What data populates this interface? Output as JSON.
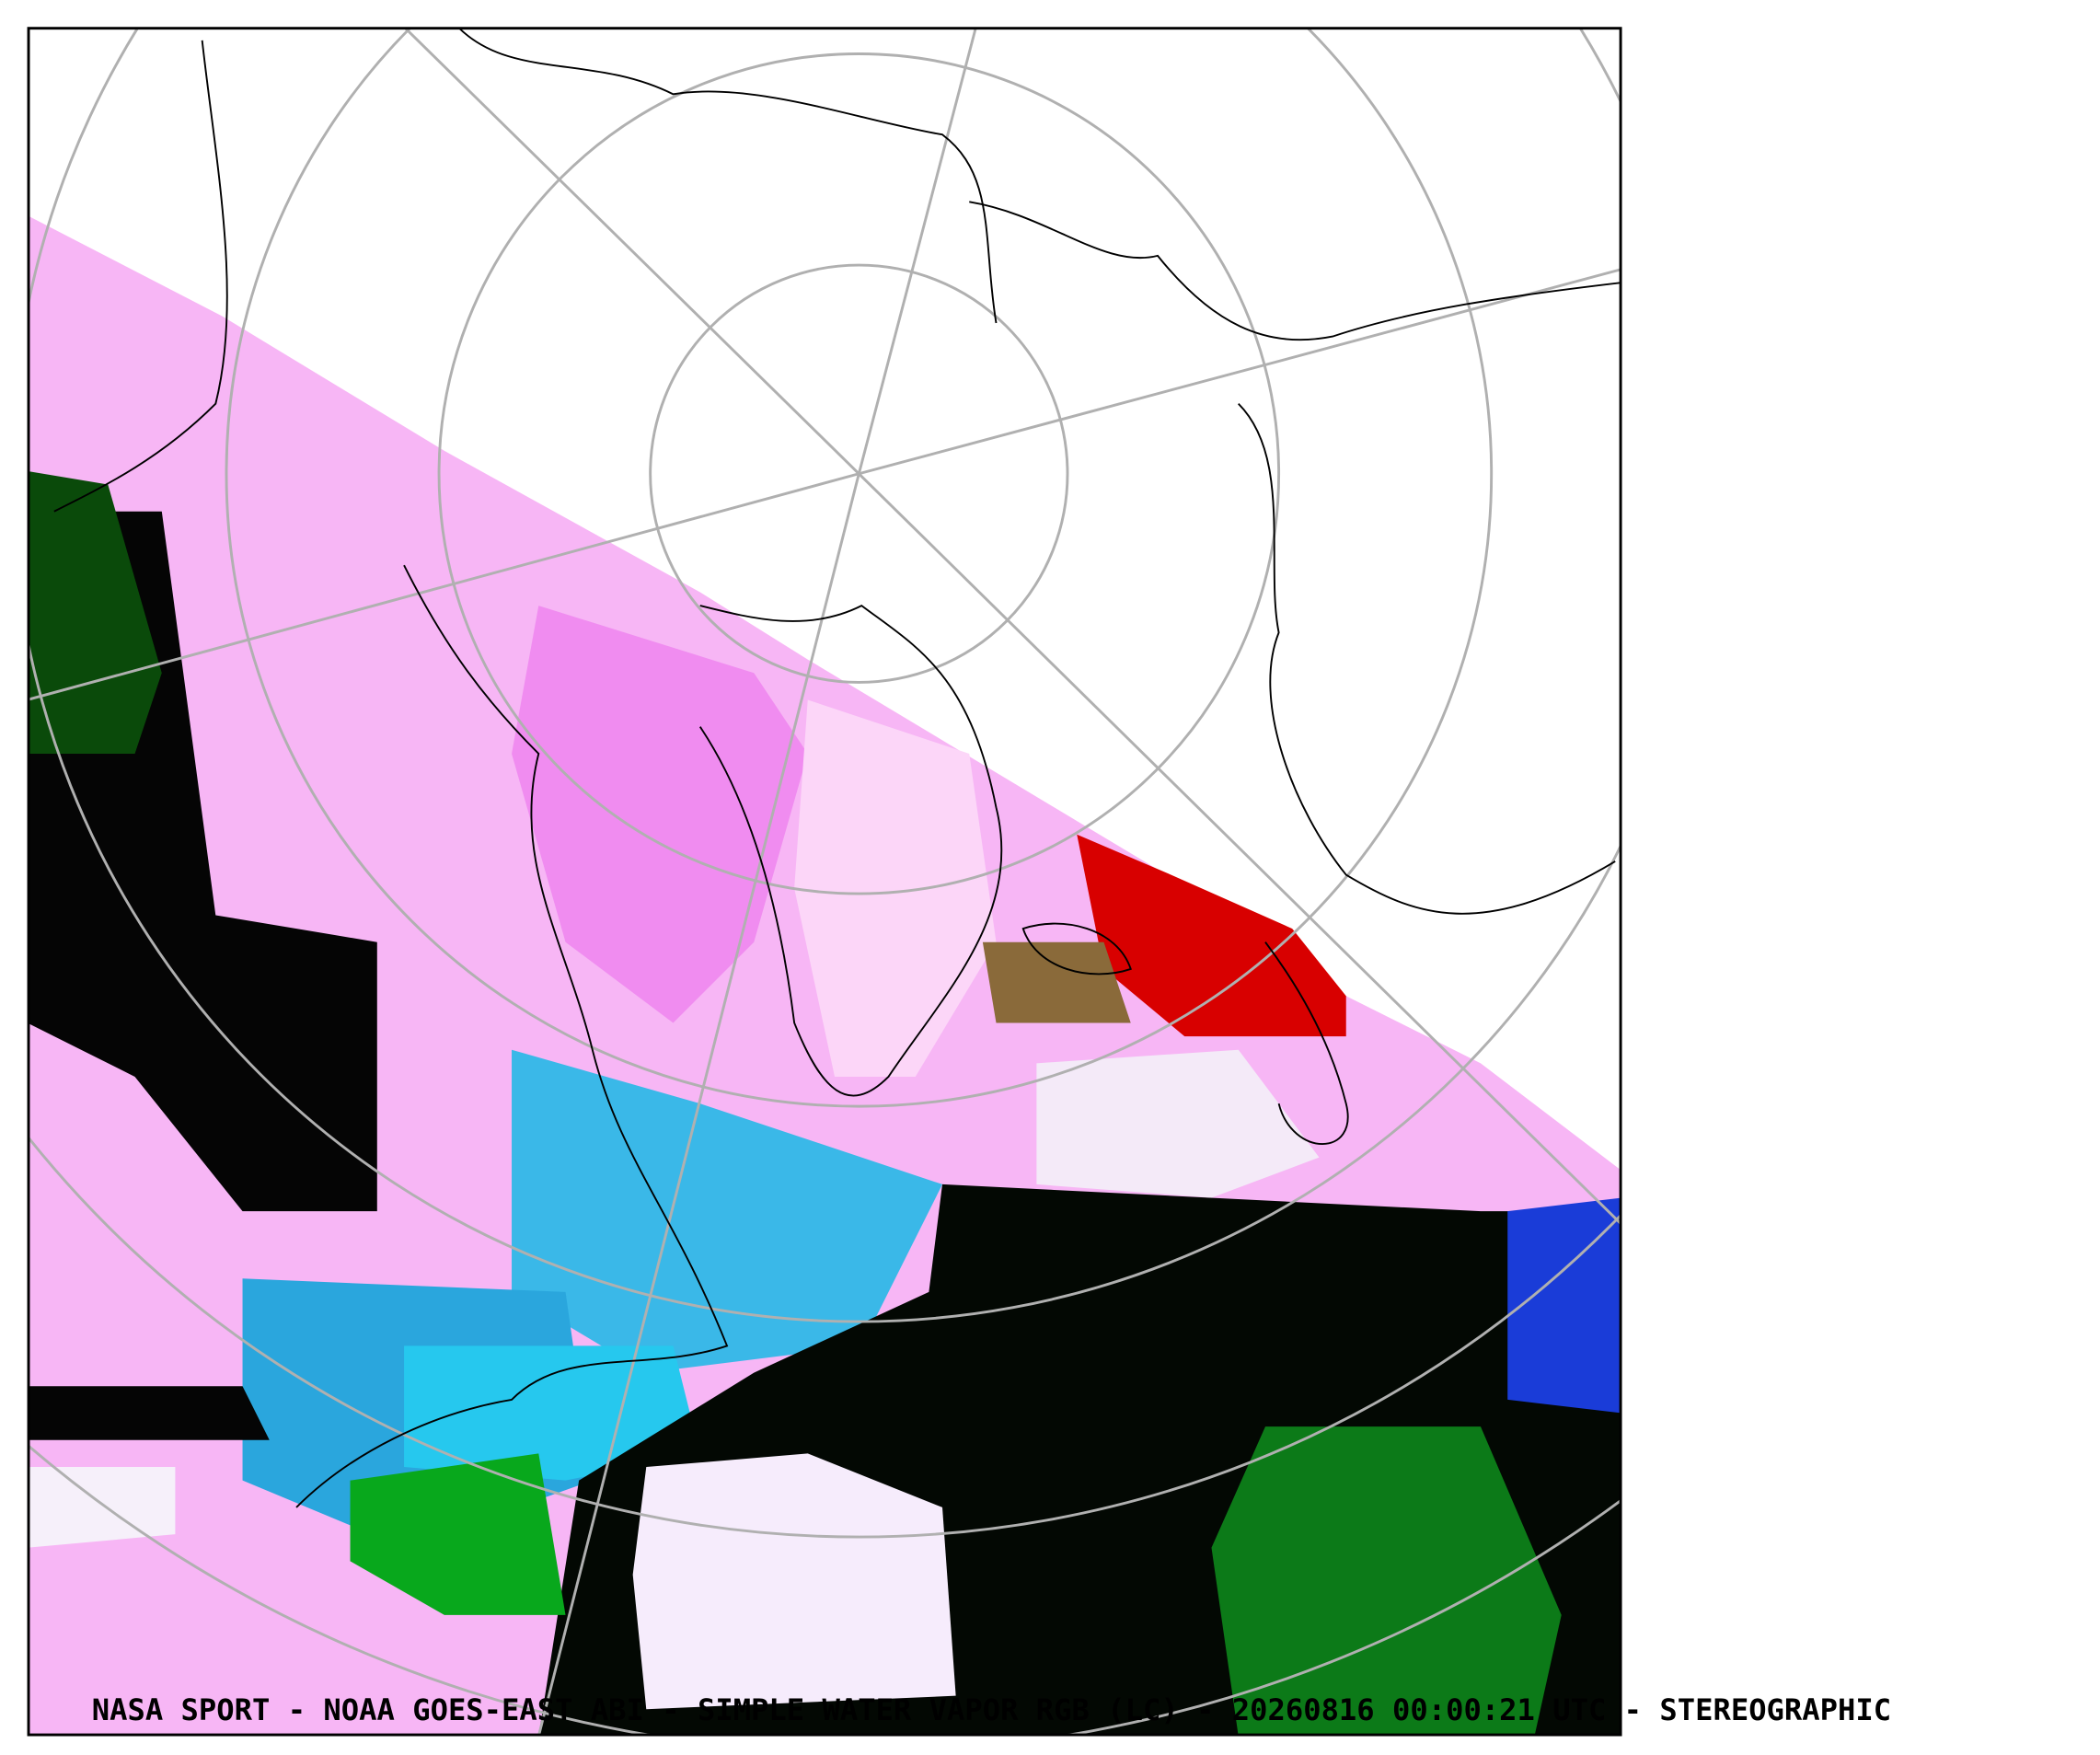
{
  "caption": "NASA SPORT  -  NOAA GOES-EAST ABI  -  SIMPLE WATER VAPOR RGB (LC)  -  20260816 00:00:21 UTC - STEREOGRAPHIC"
}
